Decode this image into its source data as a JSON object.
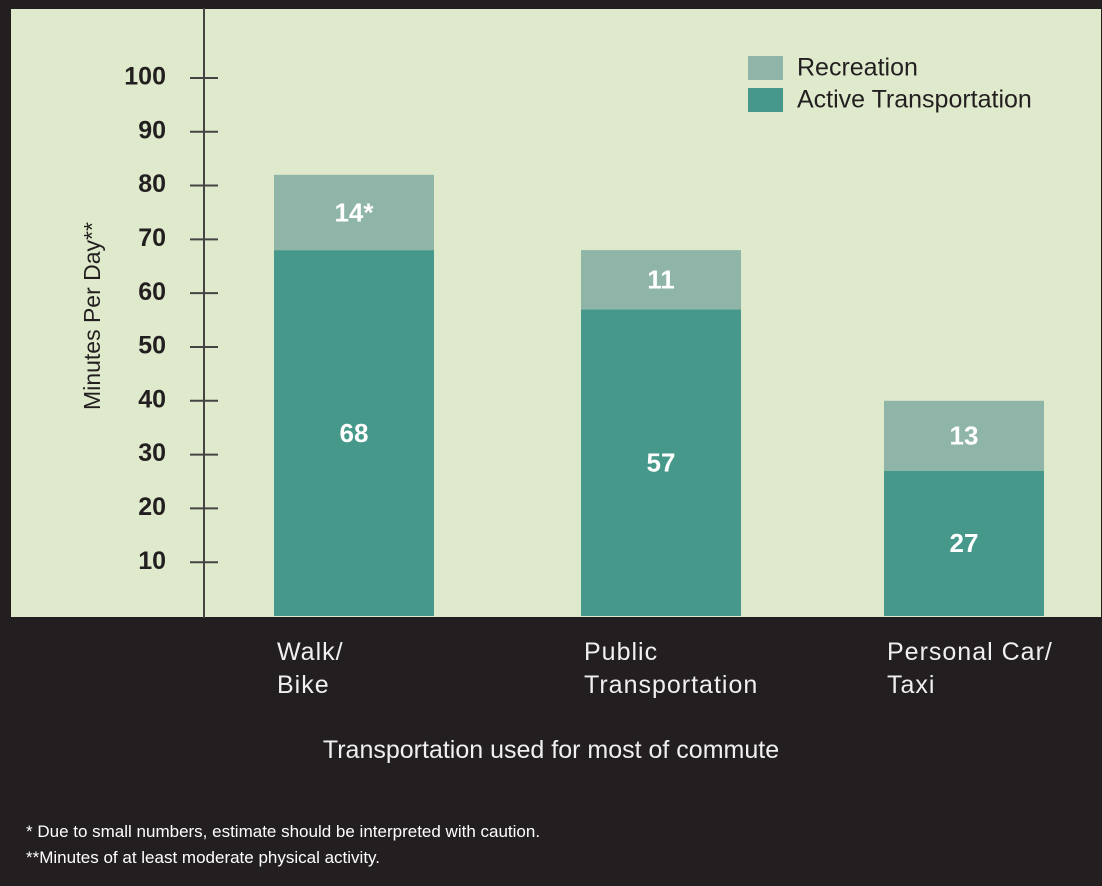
{
  "chart_data": {
    "type": "stacked_bar",
    "categories": [
      "Walk/\nBike",
      "Public\nTransportation",
      "Personal Car/\nTaxi"
    ],
    "series": [
      {
        "name": "Active Transportation",
        "color": "#46998a",
        "values": [
          68,
          57,
          27
        ]
      },
      {
        "name": "Recreation",
        "color": "#8fb5a8",
        "values": [
          14,
          11,
          13
        ],
        "value_labels": [
          "14*",
          "11",
          "13"
        ]
      }
    ],
    "ylim": [
      0,
      113
    ],
    "yticks": [
      10,
      20,
      30,
      40,
      50,
      60,
      70,
      80,
      90,
      100
    ],
    "y_label": "Minutes Per Day**",
    "x_label": "Transportation used for most of commute",
    "footnotes": [
      "* Due to small numbers, estimate should be interpreted with caution.",
      "**Minutes of at least moderate physical activity."
    ],
    "legend": "top-right"
  }
}
